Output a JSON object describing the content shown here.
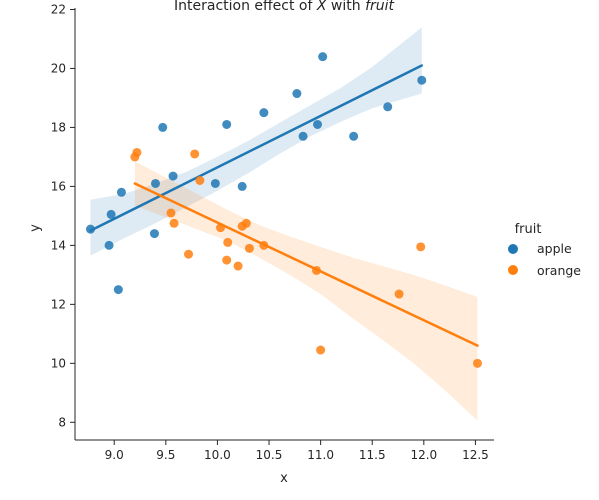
{
  "chart_data": {
    "type": "scatter",
    "title": {
      "prefix": "Interaction effect of ",
      "var_x": "X",
      "middle": " with ",
      "var_fruit": "fruit"
    },
    "xlabel": "x",
    "ylabel": "y",
    "xlim": [
      8.62,
      12.68
    ],
    "ylim": [
      7.4,
      22.05
    ],
    "xticks": [
      9.0,
      9.5,
      10.0,
      10.5,
      11.0,
      11.5,
      12.0,
      12.5
    ],
    "xtick_labels": [
      "9.0",
      "9.5",
      "10.0",
      "10.5",
      "11.0",
      "11.5",
      "12.0",
      "12.5"
    ],
    "yticks": [
      8,
      10,
      12,
      14,
      16,
      18,
      20,
      22
    ],
    "ytick_labels": [
      "8",
      "10",
      "12",
      "14",
      "16",
      "18",
      "20",
      "22"
    ],
    "grid": false,
    "legend": {
      "title": "fruit",
      "placement": "right"
    },
    "series": [
      {
        "name": "apple",
        "color": "#1f77b4",
        "x": [
          8.77,
          8.95,
          8.97,
          9.04,
          9.07,
          9.39,
          9.4,
          9.47,
          9.57,
          9.98,
          10.09,
          10.24,
          10.45,
          10.77,
          10.83,
          10.97,
          11.02,
          11.32,
          11.65,
          11.98
        ],
        "y": [
          14.55,
          14.0,
          15.05,
          12.5,
          15.8,
          14.4,
          16.1,
          18.0,
          16.35,
          16.1,
          18.1,
          16.0,
          18.5,
          19.15,
          17.7,
          18.1,
          20.4,
          17.7,
          18.7,
          19.6
        ],
        "fit": {
          "x0": 8.77,
          "y0": 14.5,
          "x1": 11.98,
          "y1": 20.1
        },
        "ci_upper": [
          [
            8.77,
            15.55
          ],
          [
            9.1,
            15.75
          ],
          [
            9.4,
            16.1
          ],
          [
            9.7,
            16.5
          ],
          [
            10.0,
            17.0
          ],
          [
            10.3,
            17.55
          ],
          [
            10.6,
            18.15
          ],
          [
            10.9,
            18.75
          ],
          [
            11.2,
            19.35
          ],
          [
            11.5,
            20.05
          ],
          [
            11.98,
            21.4
          ]
        ],
        "ci_lower": [
          [
            8.77,
            13.65
          ],
          [
            9.1,
            14.25
          ],
          [
            9.4,
            14.75
          ],
          [
            9.7,
            15.3
          ],
          [
            10.0,
            15.85
          ],
          [
            10.3,
            16.45
          ],
          [
            10.6,
            17.1
          ],
          [
            10.9,
            17.7
          ],
          [
            11.2,
            18.2
          ],
          [
            11.5,
            18.65
          ],
          [
            11.98,
            19.15
          ]
        ]
      },
      {
        "name": "orange",
        "color": "#ff7f0e",
        "x": [
          9.2,
          9.22,
          9.55,
          9.58,
          9.72,
          9.78,
          9.83,
          10.03,
          10.09,
          10.1,
          10.2,
          10.24,
          10.28,
          10.31,
          10.45,
          10.96,
          11.0,
          11.76,
          11.97,
          12.52
        ],
        "y": [
          17.0,
          17.15,
          15.1,
          14.75,
          13.7,
          17.1,
          16.2,
          14.6,
          13.5,
          14.1,
          13.3,
          14.65,
          14.75,
          13.9,
          14.0,
          13.15,
          10.45,
          12.35,
          13.95,
          10.0
        ],
        "fit": {
          "x0": 9.2,
          "y0": 16.1,
          "x1": 12.52,
          "y1": 10.6
        },
        "ci_upper": [
          [
            9.2,
            16.85
          ],
          [
            9.5,
            16.3
          ],
          [
            9.8,
            15.75
          ],
          [
            10.1,
            15.2
          ],
          [
            10.4,
            14.7
          ],
          [
            10.7,
            14.3
          ],
          [
            11.0,
            13.95
          ],
          [
            11.3,
            13.6
          ],
          [
            11.6,
            13.3
          ],
          [
            11.9,
            13.0
          ],
          [
            12.2,
            12.65
          ],
          [
            12.52,
            12.25
          ]
        ],
        "ci_lower": [
          [
            9.2,
            15.35
          ],
          [
            9.5,
            14.95
          ],
          [
            9.8,
            14.55
          ],
          [
            10.1,
            14.15
          ],
          [
            10.4,
            13.6
          ],
          [
            10.7,
            13.0
          ],
          [
            11.0,
            12.35
          ],
          [
            11.3,
            11.55
          ],
          [
            11.6,
            10.8
          ],
          [
            11.9,
            10.0
          ],
          [
            12.2,
            9.1
          ],
          [
            12.52,
            8.05
          ]
        ]
      }
    ]
  }
}
